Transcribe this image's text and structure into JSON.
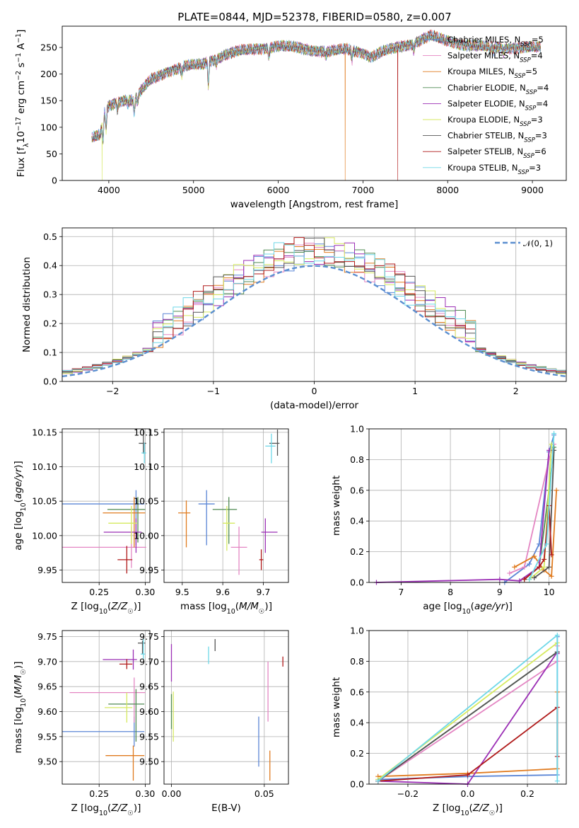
{
  "figure_title": "PLATE=0844, MJD=52378, FIBERID=0580, z=0.007",
  "colors": {
    "Chabrier MILES": "#5b86d6",
    "Salpeter MILES": "#e486c3",
    "Kroupa MILES": "#e07b1f",
    "Chabrier ELODIE": "#4f8a52",
    "Salpeter ELODIE": "#9b2fb5",
    "Kroupa ELODIE": "#d6ea60",
    "Chabrier STELIB": "#555555",
    "Salpeter STELIB": "#b01a1a",
    "Kroupa STELIB": "#6fd8e8",
    "normal": "#5b8fd0"
  },
  "chart_data": [
    {
      "id": "spectrum",
      "type": "line",
      "xlabel": "wavelength [Angstrom, rest frame]",
      "ylabel": "Flux [f_λ 10^-17 erg cm^-2 s^-1 A^-1]",
      "xlim": [
        3450,
        9400
      ],
      "ylim": [
        0,
        290
      ],
      "xticks": [
        4000,
        5000,
        6000,
        7000,
        8000,
        9000
      ],
      "yticks": [
        0,
        50,
        100,
        150,
        200,
        250
      ],
      "grid": false,
      "legend_position": "upper right",
      "series": [
        {
          "name": "Chabrier MILES",
          "nssp": 5
        },
        {
          "name": "Salpeter MILES",
          "nssp": 4
        },
        {
          "name": "Kroupa MILES",
          "nssp": 5
        },
        {
          "name": "Chabrier ELODIE",
          "nssp": 4
        },
        {
          "name": "Salpeter ELODIE",
          "nssp": 4
        },
        {
          "name": "Kroupa ELODIE",
          "nssp": 3
        },
        {
          "name": "Chabrier STELIB",
          "nssp": 3
        },
        {
          "name": "Salpeter STELIB",
          "nssp": 6
        },
        {
          "name": "Kroupa STELIB",
          "nssp": 3
        }
      ],
      "continuum": {
        "x": [
          3800,
          3900,
          3950,
          4000,
          4100,
          4200,
          4300,
          4400,
          4500,
          4700,
          4900,
          5100,
          5200,
          5400,
          5600,
          5800,
          6000,
          6200,
          6400,
          6600,
          6800,
          7000,
          7100,
          7200,
          7400,
          7600,
          7800,
          8000,
          8200,
          8400,
          8600,
          8800,
          9000,
          9100
        ],
        "y": [
          80,
          85,
          128,
          140,
          148,
          152,
          150,
          172,
          190,
          205,
          215,
          218,
          225,
          238,
          245,
          248,
          253,
          250,
          245,
          242,
          247,
          240,
          232,
          240,
          250,
          258,
          272,
          262,
          255,
          252,
          250,
          249,
          250,
          250
        ]
      },
      "dips": [
        {
          "series": "Kroupa ELODIE",
          "x": 3920
        },
        {
          "series": "Kroupa MILES",
          "x": 6790
        },
        {
          "series": "Salpeter STELIB",
          "x": 7410
        }
      ]
    },
    {
      "id": "residuals",
      "type": "histogram",
      "xlabel": "(data-model)/error",
      "ylabel": "Normed distribution",
      "xlim": [
        -2.5,
        2.5
      ],
      "ylim": [
        0,
        0.53
      ],
      "xticks": [
        -2,
        -1,
        0,
        1,
        2
      ],
      "yticks": [
        0.0,
        0.1,
        0.2,
        0.3,
        0.4,
        0.5
      ],
      "grid": true,
      "reference_curve": {
        "name": "𝒩(0, 1)",
        "mean": 0,
        "sd": 1
      },
      "legend_position": "upper right"
    },
    {
      "id": "age_vs_Z",
      "type": "errorbar",
      "xlabel": "Z [log10(Z/Z☉)]",
      "ylabel": "age [log10(age/yr)]",
      "xlim": [
        0.21,
        0.305
      ],
      "ylim": [
        9.932,
        10.155
      ],
      "xticks": [
        0.25,
        0.3
      ],
      "yticks": [
        9.95,
        10.0,
        10.05,
        10.1,
        10.15
      ],
      "grid": true,
      "points": [
        {
          "series": "Chabrier MILES",
          "x": 0.29,
          "xerr": [
            0.082,
            0.009
          ],
          "y": 10.046,
          "yerr": [
            0.06,
            0.02
          ]
        },
        {
          "series": "Salpeter MILES",
          "x": 0.285,
          "xerr": [
            0.075,
            0.016
          ],
          "y": 9.983,
          "yerr": [
            0.03,
            0.03
          ]
        },
        {
          "series": "Kroupa MILES",
          "x": 0.288,
          "xerr": [
            0.034,
            0.012
          ],
          "y": 10.033,
          "yerr": [
            0.05,
            0.023
          ]
        },
        {
          "series": "Chabrier ELODIE",
          "x": 0.292,
          "xerr": [
            0.033,
            0.008
          ],
          "y": 10.038,
          "yerr": [
            0.048,
            0.018
          ]
        },
        {
          "series": "Salpeter ELODIE",
          "x": 0.29,
          "xerr": [
            0.035,
            0.006
          ],
          "y": 10.005,
          "yerr": [
            0.03,
            0.02
          ]
        },
        {
          "series": "Kroupa ELODIE",
          "x": 0.285,
          "xerr": [
            0.025,
            0.006
          ],
          "y": 10.018,
          "yerr": [
            0.03,
            0.025
          ]
        },
        {
          "series": "Chabrier STELIB",
          "x": 0.298,
          "xerr": [
            0.005,
            0.003
          ],
          "y": 10.134,
          "yerr": [
            0.015,
            0.02
          ]
        },
        {
          "series": "Salpeter STELIB",
          "x": 0.28,
          "xerr": [
            0.01,
            0.006
          ],
          "y": 9.965,
          "yerr": [
            0.02,
            0.02
          ]
        },
        {
          "series": "Kroupa STELIB",
          "x": 0.299,
          "xerr": [
            0.003,
            0.002
          ],
          "y": 10.12,
          "yerr": [
            0.015,
            0.015
          ]
        }
      ]
    },
    {
      "id": "age_vs_mass",
      "type": "errorbar",
      "xlabel": "mass [log10(M/M☉)]",
      "ylabel": "",
      "xlim": [
        9.455,
        9.762
      ],
      "ylim": [
        9.932,
        10.155
      ],
      "xticks": [
        9.5,
        9.6,
        9.7
      ],
      "yticks": [
        9.95,
        10.0,
        10.05,
        10.1,
        10.15
      ],
      "grid": true,
      "points": [
        {
          "series": "Chabrier MILES",
          "x": 9.56,
          "xerr": [
            0.02,
            0.02
          ],
          "y": 10.046,
          "yerr": [
            0.06,
            0.02
          ]
        },
        {
          "series": "Salpeter MILES",
          "x": 9.64,
          "xerr": [
            0.02,
            0.02
          ],
          "y": 9.983,
          "yerr": [
            0.04,
            0.03
          ]
        },
        {
          "series": "Kroupa MILES",
          "x": 9.51,
          "xerr": [
            0.02,
            0.01
          ],
          "y": 10.033,
          "yerr": [
            0.05,
            0.018
          ]
        },
        {
          "series": "Chabrier ELODIE",
          "x": 9.615,
          "xerr": [
            0.04,
            0.02
          ],
          "y": 10.038,
          "yerr": [
            0.05,
            0.018
          ]
        },
        {
          "series": "Salpeter ELODIE",
          "x": 9.705,
          "xerr": [
            0.01,
            0.03
          ],
          "y": 10.005,
          "yerr": [
            0.03,
            0.02
          ]
        },
        {
          "series": "Kroupa ELODIE",
          "x": 9.61,
          "xerr": [
            0.01,
            0.02
          ],
          "y": 10.018,
          "yerr": [
            0.04,
            0.025
          ]
        },
        {
          "series": "Chabrier STELIB",
          "x": 9.735,
          "xerr": [
            0.02,
            0.005
          ],
          "y": 10.134,
          "yerr": [
            0.018,
            0.02
          ]
        },
        {
          "series": "Salpeter STELIB",
          "x": 9.695,
          "xerr": [
            0.005,
            0.005
          ],
          "y": 9.965,
          "yerr": [
            0.015,
            0.015
          ]
        },
        {
          "series": "Kroupa STELIB",
          "x": 9.72,
          "xerr": [
            0.015,
            0.01
          ],
          "y": 10.13,
          "yerr": [
            0.025,
            0.018
          ]
        }
      ]
    },
    {
      "id": "massweight_vs_age",
      "type": "line",
      "xlabel": "age [log10(age/yr)]",
      "ylabel": "mass weight",
      "xlim": [
        6.35,
        10.35
      ],
      "ylim": [
        0,
        1
      ],
      "xticks": [
        7,
        8,
        9,
        10
      ],
      "yticks": [
        0.0,
        0.2,
        0.4,
        0.6,
        0.8,
        1.0
      ],
      "grid": true,
      "series": [
        {
          "name": "Chabrier MILES",
          "x": [
            9.1,
            9.6,
            9.8,
            10.0,
            10.1
          ],
          "y": [
            0.0,
            0.12,
            0.25,
            0.85,
            0.96
          ]
        },
        {
          "name": "Salpeter MILES",
          "x": [
            9.2,
            9.5,
            10.0,
            10.1
          ],
          "y": [
            0.06,
            0.1,
            0.8,
            0.9
          ]
        },
        {
          "name": "Kroupa MILES",
          "x": [
            9.3,
            9.7,
            9.9,
            10.05,
            10.15
          ],
          "y": [
            0.1,
            0.17,
            0.08,
            0.04,
            0.6
          ]
        },
        {
          "name": "Chabrier ELODIE",
          "x": [
            9.5,
            9.8,
            10.0,
            10.1
          ],
          "y": [
            0.02,
            0.1,
            0.6,
            0.88
          ]
        },
        {
          "name": "Salpeter ELODIE",
          "x": [
            6.5,
            9.0,
            9.4,
            9.8,
            10.0
          ],
          "y": [
            0.0,
            0.02,
            0.01,
            0.1,
            0.86
          ]
        },
        {
          "name": "Kroupa ELODIE",
          "x": [
            9.6,
            9.9,
            10.05
          ],
          "y": [
            0.02,
            0.1,
            0.9
          ]
        },
        {
          "name": "Chabrier STELIB",
          "x": [
            9.7,
            10.0,
            10.1
          ],
          "y": [
            0.03,
            0.1,
            0.86
          ]
        },
        {
          "name": "Salpeter STELIB",
          "x": [
            9.5,
            9.8,
            9.9,
            10.0,
            10.05
          ],
          "y": [
            0.02,
            0.1,
            0.15,
            0.5,
            0.18
          ]
        },
        {
          "name": "Kroupa STELIB",
          "x": [
            9.6,
            9.95,
            10.1
          ],
          "y": [
            0.02,
            0.25,
            0.97
          ]
        }
      ]
    },
    {
      "id": "mass_vs_Z",
      "type": "errorbar",
      "xlabel": "Z [log10(Z/Z☉)]",
      "ylabel": "mass [log10(M/M☉)]",
      "xlim": [
        0.21,
        0.305
      ],
      "ylim": [
        9.455,
        9.762
      ],
      "xticks": [
        0.25,
        0.3
      ],
      "yticks": [
        9.5,
        9.55,
        9.6,
        9.65,
        9.7,
        9.75
      ],
      "grid": true,
      "points": [
        {
          "series": "Chabrier MILES",
          "x": 0.288,
          "xerr": [
            0.079,
            0.011
          ],
          "y": 9.56,
          "yerr": [
            0.03,
            0.03
          ]
        },
        {
          "series": "Salpeter MILES",
          "x": 0.288,
          "xerr": [
            0.07,
            0.012
          ],
          "y": 9.638,
          "yerr": [
            0.06,
            0.03
          ]
        },
        {
          "series": "Kroupa MILES",
          "x": 0.287,
          "xerr": [
            0.03,
            0.012
          ],
          "y": 9.512,
          "yerr": [
            0.05,
            0.02
          ]
        },
        {
          "series": "Chabrier ELODIE",
          "x": 0.29,
          "xerr": [
            0.03,
            0.009
          ],
          "y": 9.615,
          "yerr": [
            0.075,
            0.03
          ]
        },
        {
          "series": "Salpeter ELODIE",
          "x": 0.287,
          "xerr": [
            0.033,
            0.004
          ],
          "y": 9.704,
          "yerr": [
            0.02,
            0.02
          ]
        },
        {
          "series": "Kroupa ELODIE",
          "x": 0.28,
          "xerr": [
            0.024,
            0.006
          ],
          "y": 9.608,
          "yerr": [
            0.03,
            0.03
          ]
        },
        {
          "series": "Chabrier STELIB",
          "x": 0.297,
          "xerr": [
            0.005,
            0.003
          ],
          "y": 9.737,
          "yerr": [
            0.022,
            0.005
          ]
        },
        {
          "series": "Salpeter STELIB",
          "x": 0.28,
          "xerr": [
            0.008,
            0.006
          ],
          "y": 9.695,
          "yerr": [
            0.01,
            0.01
          ]
        },
        {
          "series": "Kroupa STELIB",
          "x": 0.298,
          "xerr": [
            0.003,
            0.002
          ],
          "y": 9.715,
          "yerr": [
            0.01,
            0.03
          ]
        }
      ]
    },
    {
      "id": "mass_vs_EBV",
      "type": "errorbar",
      "xlabel": "E(B-V)",
      "ylabel": "",
      "xlim": [
        -0.004,
        0.063
      ],
      "ylim": [
        9.455,
        9.762
      ],
      "xticks": [
        0.0,
        0.05
      ],
      "yticks": [
        9.5,
        9.55,
        9.6,
        9.65,
        9.7,
        9.75
      ],
      "grid": true,
      "points": [
        {
          "series": "Chabrier MILES",
          "x": 0.047,
          "y": 9.54,
          "yerr": [
            0.05,
            0.05
          ]
        },
        {
          "series": "Salpeter MILES",
          "x": 0.052,
          "y": 9.64,
          "yerr": [
            0.06,
            0.06
          ]
        },
        {
          "series": "Kroupa MILES",
          "x": 0.053,
          "y": 9.492,
          "yerr": [
            0.03,
            0.03
          ]
        },
        {
          "series": "Chabrier ELODIE",
          "x": 0.0,
          "y": 9.605,
          "yerr": [
            0.04,
            0.03
          ]
        },
        {
          "series": "Salpeter ELODIE",
          "x": 0.0,
          "y": 9.7,
          "yerr": [
            0.04,
            0.035
          ]
        },
        {
          "series": "Kroupa ELODIE",
          "x": 0.001,
          "y": 9.58,
          "yerr": [
            0.04,
            0.06
          ]
        },
        {
          "series": "Chabrier STELIB",
          "x": 0.0235,
          "y": 9.733,
          "yerr": [
            0.012,
            0.012
          ]
        },
        {
          "series": "Salpeter STELIB",
          "x": 0.06,
          "y": 9.7,
          "yerr": [
            0.01,
            0.01
          ]
        },
        {
          "series": "Kroupa STELIB",
          "x": 0.02,
          "y": 9.715,
          "yerr": [
            0.02,
            0.015
          ]
        }
      ]
    },
    {
      "id": "massweight_vs_Z",
      "type": "line",
      "xlabel": "Z [log10(Z/Z☉)]",
      "ylabel": "mass weight",
      "xlim": [
        -0.33,
        0.33
      ],
      "ylim": [
        0,
        1
      ],
      "xticks": [
        -0.2,
        0.0,
        0.2
      ],
      "yticks": [
        0.0,
        0.2,
        0.4,
        0.6,
        0.8,
        1.0
      ],
      "grid": true,
      "series": [
        {
          "name": "Chabrier MILES",
          "x": [
            -0.3,
            0.0,
            0.3,
            0.3
          ],
          "y": [
            0.03,
            0.05,
            0.06,
            0.96
          ]
        },
        {
          "name": "Salpeter MILES",
          "x": [
            -0.3,
            0.3,
            0.3
          ],
          "y": [
            0.02,
            0.8,
            0.9
          ]
        },
        {
          "name": "Kroupa MILES",
          "x": [
            -0.3,
            0.0,
            0.3,
            0.3
          ],
          "y": [
            0.05,
            0.07,
            0.1,
            0.6
          ]
        },
        {
          "name": "Chabrier ELODIE",
          "x": [
            -0.3,
            0.3
          ],
          "y": [
            0.02,
            0.86
          ]
        },
        {
          "name": "Salpeter ELODIE",
          "x": [
            -0.3,
            0.0,
            0.3,
            0.3
          ],
          "y": [
            0.02,
            0.0,
            0.86,
            0.85
          ]
        },
        {
          "name": "Kroupa ELODIE",
          "x": [
            -0.3,
            0.3
          ],
          "y": [
            0.03,
            0.92
          ]
        },
        {
          "name": "Chabrier STELIB",
          "x": [
            -0.3,
            0.3
          ],
          "y": [
            0.02,
            0.86
          ]
        },
        {
          "name": "Salpeter STELIB",
          "x": [
            -0.3,
            0.0,
            0.3,
            0.3
          ],
          "y": [
            0.02,
            0.06,
            0.5,
            0.18
          ]
        },
        {
          "name": "Kroupa STELIB",
          "x": [
            -0.3,
            0.3,
            0.3
          ],
          "y": [
            0.02,
            0.97,
            0.02
          ]
        }
      ]
    }
  ]
}
